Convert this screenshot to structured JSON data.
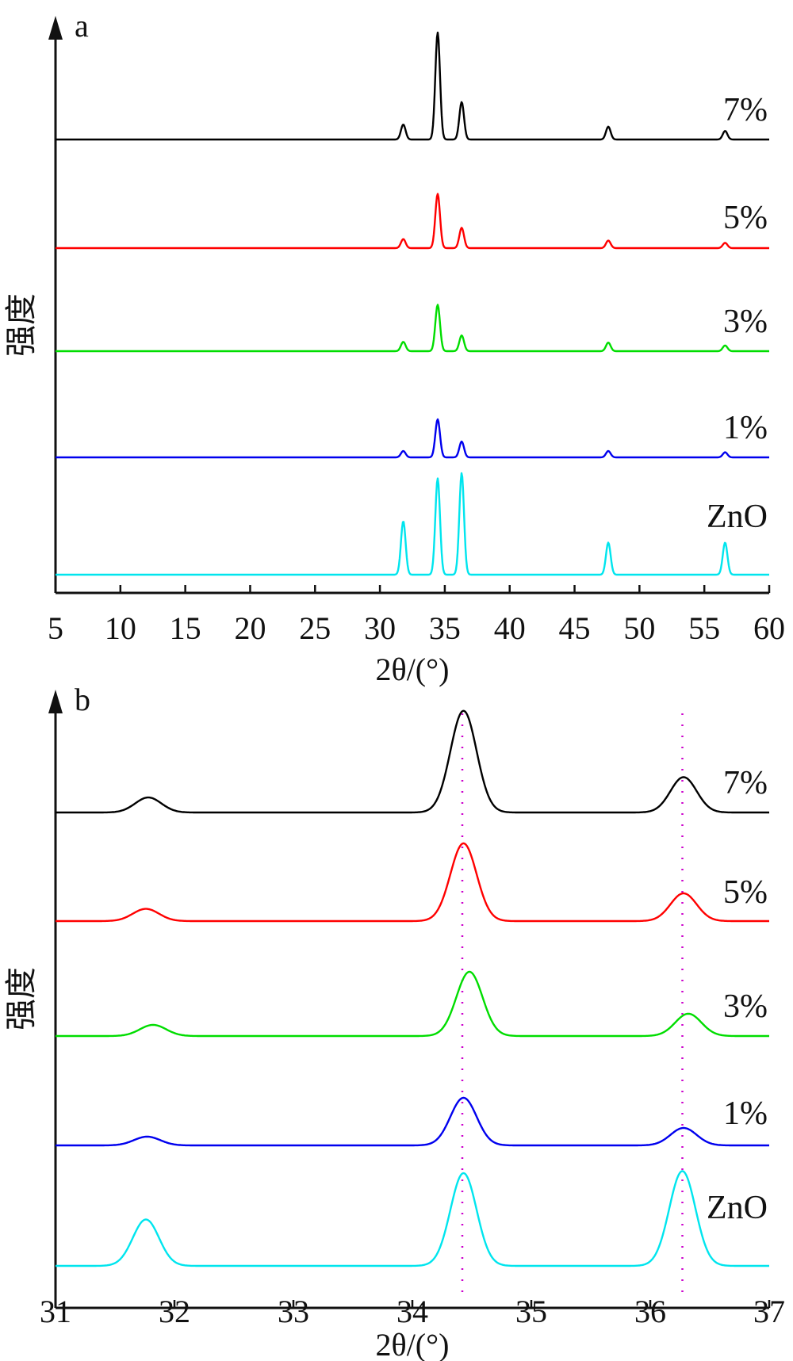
{
  "colors": {
    "7%": "#000000",
    "5%": "#ff0000",
    "3%": "#00dd00",
    "1%": "#0000ee",
    "ZnO": "#00e5ee",
    "reference_lines": "#cc00cc"
  },
  "chart_data": [
    {
      "panel": "a",
      "type": "line",
      "xlabel": "2θ/(°)",
      "ylabel": "强度",
      "xlim": [
        5,
        60
      ],
      "xticks": [
        5,
        10,
        15,
        20,
        25,
        30,
        35,
        40,
        45,
        50,
        55,
        60
      ],
      "y_ticks_shown": false,
      "series": [
        {
          "name": "7%",
          "peaks": [
            {
              "x": 31.8,
              "h": 0.14
            },
            {
              "x": 34.45,
              "h": 1.0
            },
            {
              "x": 36.3,
              "h": 0.35
            },
            {
              "x": 47.6,
              "h": 0.12
            },
            {
              "x": 56.6,
              "h": 0.08
            }
          ]
        },
        {
          "name": "5%",
          "peaks": [
            {
              "x": 31.8,
              "h": 0.12
            },
            {
              "x": 34.45,
              "h": 0.72
            },
            {
              "x": 36.3,
              "h": 0.27
            },
            {
              "x": 47.6,
              "h": 0.1
            },
            {
              "x": 56.6,
              "h": 0.07
            }
          ]
        },
        {
          "name": "3%",
          "peaks": [
            {
              "x": 31.8,
              "h": 0.13
            },
            {
              "x": 34.45,
              "h": 0.65
            },
            {
              "x": 36.3,
              "h": 0.22
            },
            {
              "x": 47.6,
              "h": 0.12
            },
            {
              "x": 56.6,
              "h": 0.08
            }
          ]
        },
        {
          "name": "1%",
          "peaks": [
            {
              "x": 31.8,
              "h": 0.1
            },
            {
              "x": 34.45,
              "h": 0.6
            },
            {
              "x": 36.3,
              "h": 0.25
            },
            {
              "x": 47.6,
              "h": 0.1
            },
            {
              "x": 56.6,
              "h": 0.08
            }
          ]
        },
        {
          "name": "ZnO",
          "peaks": [
            {
              "x": 31.8,
              "h": 0.5
            },
            {
              "x": 34.45,
              "h": 0.9
            },
            {
              "x": 36.3,
              "h": 0.95
            },
            {
              "x": 47.6,
              "h": 0.3
            },
            {
              "x": 56.6,
              "h": 0.3
            }
          ]
        }
      ]
    },
    {
      "panel": "b",
      "type": "line",
      "xlabel": "2θ/(°)",
      "ylabel": "强度",
      "xlim": [
        31,
        37
      ],
      "xticks": [
        31,
        32,
        33,
        34,
        35,
        36,
        37
      ],
      "y_ticks_shown": false,
      "reference_lines_x": [
        34.42,
        36.27
      ],
      "series": [
        {
          "name": "7%",
          "peaks": [
            {
              "x": 31.78,
              "h": 0.14
            },
            {
              "x": 34.43,
              "h": 0.95
            },
            {
              "x": 36.28,
              "h": 0.33
            }
          ]
        },
        {
          "name": "5%",
          "peaks": [
            {
              "x": 31.76,
              "h": 0.11
            },
            {
              "x": 34.43,
              "h": 0.7
            },
            {
              "x": 36.28,
              "h": 0.25
            }
          ]
        },
        {
          "name": "3%",
          "peaks": [
            {
              "x": 31.82,
              "h": 0.13
            },
            {
              "x": 34.48,
              "h": 0.75
            },
            {
              "x": 36.32,
              "h": 0.26
            }
          ]
        },
        {
          "name": "1%",
          "peaks": [
            {
              "x": 31.77,
              "h": 0.11
            },
            {
              "x": 34.43,
              "h": 0.6
            },
            {
              "x": 36.28,
              "h": 0.22
            }
          ]
        },
        {
          "name": "ZnO",
          "peaks": [
            {
              "x": 31.76,
              "h": 0.45
            },
            {
              "x": 34.43,
              "h": 0.9
            },
            {
              "x": 36.27,
              "h": 0.92
            }
          ]
        }
      ]
    }
  ]
}
